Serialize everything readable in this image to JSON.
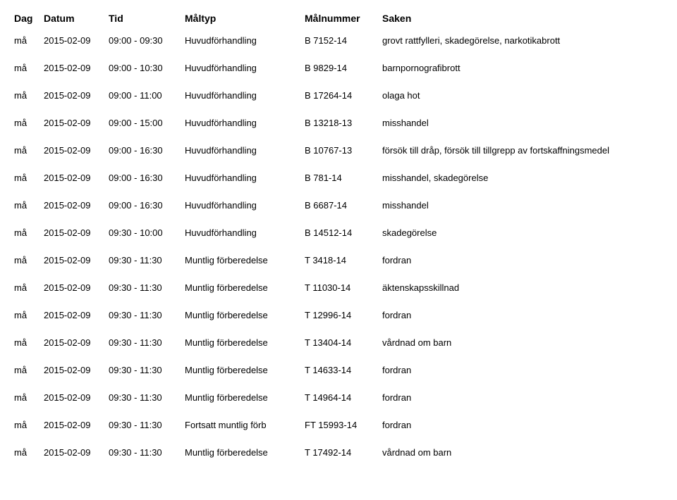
{
  "headers": {
    "dag": "Dag",
    "datum": "Datum",
    "tid": "Tid",
    "maltyp": "Måltyp",
    "malnummer": "Målnummer",
    "saken": "Saken"
  },
  "rows": [
    {
      "dag": "må",
      "datum": "2015-02-09",
      "tid": "09:00 - 09:30",
      "maltyp": "Huvudförhandling",
      "malnummer": "B 7152-14",
      "saken": "grovt rattfylleri, skadegörelse, narkotikabrott"
    },
    {
      "dag": "må",
      "datum": "2015-02-09",
      "tid": "09:00 - 10:30",
      "maltyp": "Huvudförhandling",
      "malnummer": "B 9829-14",
      "saken": "barnpornografibrott"
    },
    {
      "dag": "må",
      "datum": "2015-02-09",
      "tid": "09:00 - 11:00",
      "maltyp": "Huvudförhandling",
      "malnummer": "B 17264-14",
      "saken": "olaga hot"
    },
    {
      "dag": "må",
      "datum": "2015-02-09",
      "tid": "09:00 - 15:00",
      "maltyp": "Huvudförhandling",
      "malnummer": "B 13218-13",
      "saken": "misshandel"
    },
    {
      "dag": "må",
      "datum": "2015-02-09",
      "tid": "09:00 - 16:30",
      "maltyp": "Huvudförhandling",
      "malnummer": "B 10767-13",
      "saken": "försök till dråp, försök till tillgrepp av fortskaffningsmedel"
    },
    {
      "dag": "må",
      "datum": "2015-02-09",
      "tid": "09:00 - 16:30",
      "maltyp": "Huvudförhandling",
      "malnummer": "B 781-14",
      "saken": "misshandel, skadegörelse"
    },
    {
      "dag": "må",
      "datum": "2015-02-09",
      "tid": "09:00 - 16:30",
      "maltyp": "Huvudförhandling",
      "malnummer": "B 6687-14",
      "saken": "misshandel"
    },
    {
      "dag": "må",
      "datum": "2015-02-09",
      "tid": "09:30 - 10:00",
      "maltyp": "Huvudförhandling",
      "malnummer": "B 14512-14",
      "saken": "skadegörelse"
    },
    {
      "dag": "må",
      "datum": "2015-02-09",
      "tid": "09:30 - 11:30",
      "maltyp": "Muntlig förberedelse",
      "malnummer": "T 3418-14",
      "saken": "fordran"
    },
    {
      "dag": "må",
      "datum": "2015-02-09",
      "tid": "09:30 - 11:30",
      "maltyp": "Muntlig förberedelse",
      "malnummer": "T 11030-14",
      "saken": "äktenskapsskillnad"
    },
    {
      "dag": "må",
      "datum": "2015-02-09",
      "tid": "09:30 - 11:30",
      "maltyp": "Muntlig förberedelse",
      "malnummer": "T 12996-14",
      "saken": "fordran"
    },
    {
      "dag": "må",
      "datum": "2015-02-09",
      "tid": "09:30 - 11:30",
      "maltyp": "Muntlig förberedelse",
      "malnummer": "T 13404-14",
      "saken": "vårdnad om barn"
    },
    {
      "dag": "må",
      "datum": "2015-02-09",
      "tid": "09:30 - 11:30",
      "maltyp": "Muntlig förberedelse",
      "malnummer": "T 14633-14",
      "saken": "fordran"
    },
    {
      "dag": "må",
      "datum": "2015-02-09",
      "tid": "09:30 - 11:30",
      "maltyp": "Muntlig förberedelse",
      "malnummer": "T 14964-14",
      "saken": "fordran"
    },
    {
      "dag": "må",
      "datum": "2015-02-09",
      "tid": "09:30 - 11:30",
      "maltyp": "Fortsatt muntlig förb",
      "malnummer": "FT 15993-14",
      "saken": "fordran"
    },
    {
      "dag": "må",
      "datum": "2015-02-09",
      "tid": "09:30 - 11:30",
      "maltyp": "Muntlig förberedelse",
      "malnummer": "T 17492-14",
      "saken": "vårdnad om barn"
    }
  ],
  "style": {
    "background_color": "#ffffff",
    "text_color": "#000000",
    "header_fontsize": 14,
    "header_fontweight": "bold",
    "body_fontsize": 13,
    "row_gap": 24,
    "font_family": "Arial"
  }
}
